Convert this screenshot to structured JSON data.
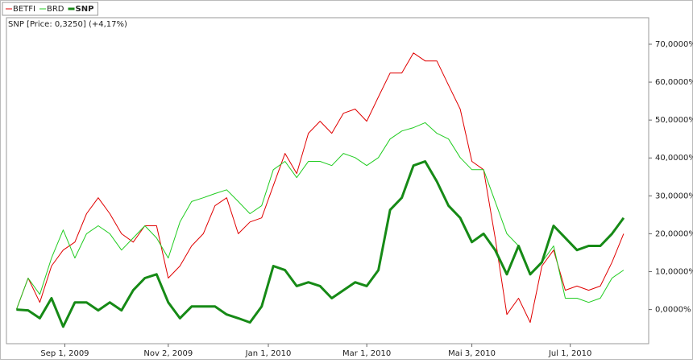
{
  "chart_data": {
    "type": "line",
    "subtitle": "SNP [Price: 0,3250] (+4,17%)",
    "x": [
      "2009-08-03",
      "2009-08-10",
      "2009-08-17",
      "2009-08-24",
      "2009-08-31",
      "2009-09-07",
      "2009-09-14",
      "2009-09-21",
      "2009-09-28",
      "2009-10-05",
      "2009-10-12",
      "2009-10-19",
      "2009-10-26",
      "2009-11-02",
      "2009-11-09",
      "2009-11-16",
      "2009-11-23",
      "2009-11-30",
      "2009-12-07",
      "2009-12-14",
      "2009-12-21",
      "2009-12-28",
      "2010-01-04",
      "2010-01-11",
      "2010-01-18",
      "2010-01-25",
      "2010-02-01",
      "2010-02-08",
      "2010-02-15",
      "2010-02-22",
      "2010-03-01",
      "2010-03-08",
      "2010-03-15",
      "2010-03-22",
      "2010-03-29",
      "2010-04-05",
      "2010-04-12",
      "2010-04-19",
      "2010-04-26",
      "2010-05-03",
      "2010-05-10",
      "2010-05-17",
      "2010-05-24",
      "2010-05-31",
      "2010-06-07",
      "2010-06-14",
      "2010-06-21",
      "2010-06-28",
      "2010-07-05",
      "2010-07-12",
      "2010-07-19",
      "2010-07-26",
      "2010-08-02"
    ],
    "series": [
      {
        "name": "BETFI",
        "color": "#e00000",
        "line_width": 1,
        "values": [
          0,
          8.3,
          1.9,
          11.5,
          15.7,
          17.8,
          25.3,
          29.5,
          25.3,
          20.0,
          17.8,
          22.1,
          22.1,
          8.3,
          11.5,
          16.8,
          20.0,
          27.4,
          29.5,
          20.0,
          23.1,
          24.2,
          32.7,
          41.2,
          35.9,
          46.5,
          49.7,
          46.5,
          51.8,
          52.9,
          49.7,
          56.1,
          62.4,
          62.4,
          67.7,
          65.6,
          65.6,
          59.2,
          52.9,
          39.1,
          36.9,
          18.9,
          -1.3,
          3.0,
          -3.4,
          11.5,
          15.7,
          5.1,
          6.2,
          5.1,
          6.2,
          12.5,
          20.0
        ]
      },
      {
        "name": "BRD",
        "color": "#22cc22",
        "line_width": 1,
        "values": [
          0,
          8.3,
          4.0,
          13.6,
          21.0,
          13.6,
          20.0,
          22.1,
          20.0,
          15.7,
          18.9,
          22.1,
          18.9,
          13.6,
          23.1,
          28.5,
          29.5,
          30.6,
          31.6,
          28.5,
          25.3,
          27.4,
          36.9,
          39.1,
          34.8,
          39.1,
          39.1,
          38.0,
          41.2,
          40.1,
          38.0,
          40.1,
          45.0,
          47.1,
          48.0,
          49.3,
          46.5,
          45.0,
          40.1,
          36.9,
          36.9,
          28.5,
          20.0,
          16.8,
          9.3,
          12.5,
          16.8,
          3.0,
          3.0,
          1.9,
          3.0,
          8.3,
          10.4
        ]
      },
      {
        "name": "SNP",
        "color": "#168a16",
        "line_width": 3,
        "values": [
          0,
          -0.2,
          -2.3,
          3.0,
          -4.5,
          1.9,
          1.9,
          -0.2,
          1.9,
          -0.2,
          5.1,
          8.3,
          9.3,
          1.9,
          -2.3,
          0.8,
          0.8,
          0.8,
          -1.3,
          -2.3,
          -3.4,
          0.8,
          11.5,
          10.4,
          6.2,
          7.2,
          6.2,
          3.0,
          5.1,
          7.2,
          6.2,
          10.4,
          26.3,
          29.5,
          38.0,
          39.1,
          33.8,
          27.4,
          24.2,
          17.8,
          20.0,
          15.7,
          9.3,
          16.8,
          9.3,
          12.5,
          22.1,
          18.9,
          15.7,
          16.8,
          16.8,
          20.0,
          24.2
        ]
      }
    ],
    "xlim": [
      "2009-07-28",
      "2010-08-17"
    ],
    "xticks": [
      {
        "value": "2009-09-01",
        "label": "Sep 1, 2009"
      },
      {
        "value": "2009-11-02",
        "label": "Nov 2, 2009"
      },
      {
        "value": "2010-01-01",
        "label": "Jan 1, 2010"
      },
      {
        "value": "2010-03-01",
        "label": "Mar 1, 2010"
      },
      {
        "value": "2010-05-03",
        "label": "Mai 3, 2010"
      },
      {
        "value": "2010-07-01",
        "label": "Jul 1, 2010"
      }
    ],
    "ylim": [
      -9,
      77
    ],
    "yticks": [
      {
        "value": 0,
        "label": "0,0000%"
      },
      {
        "value": 10,
        "label": "10,0000%"
      },
      {
        "value": 20,
        "label": "20,0000%"
      },
      {
        "value": 30,
        "label": "30,0000%"
      },
      {
        "value": 40,
        "label": "40,0000%"
      },
      {
        "value": 50,
        "label": "50,0000%"
      },
      {
        "value": 60,
        "label": "60,0000%"
      },
      {
        "value": 70,
        "label": "70,0000%"
      }
    ],
    "y_axis_side": "right",
    "legend": "top-left",
    "grid": false
  }
}
